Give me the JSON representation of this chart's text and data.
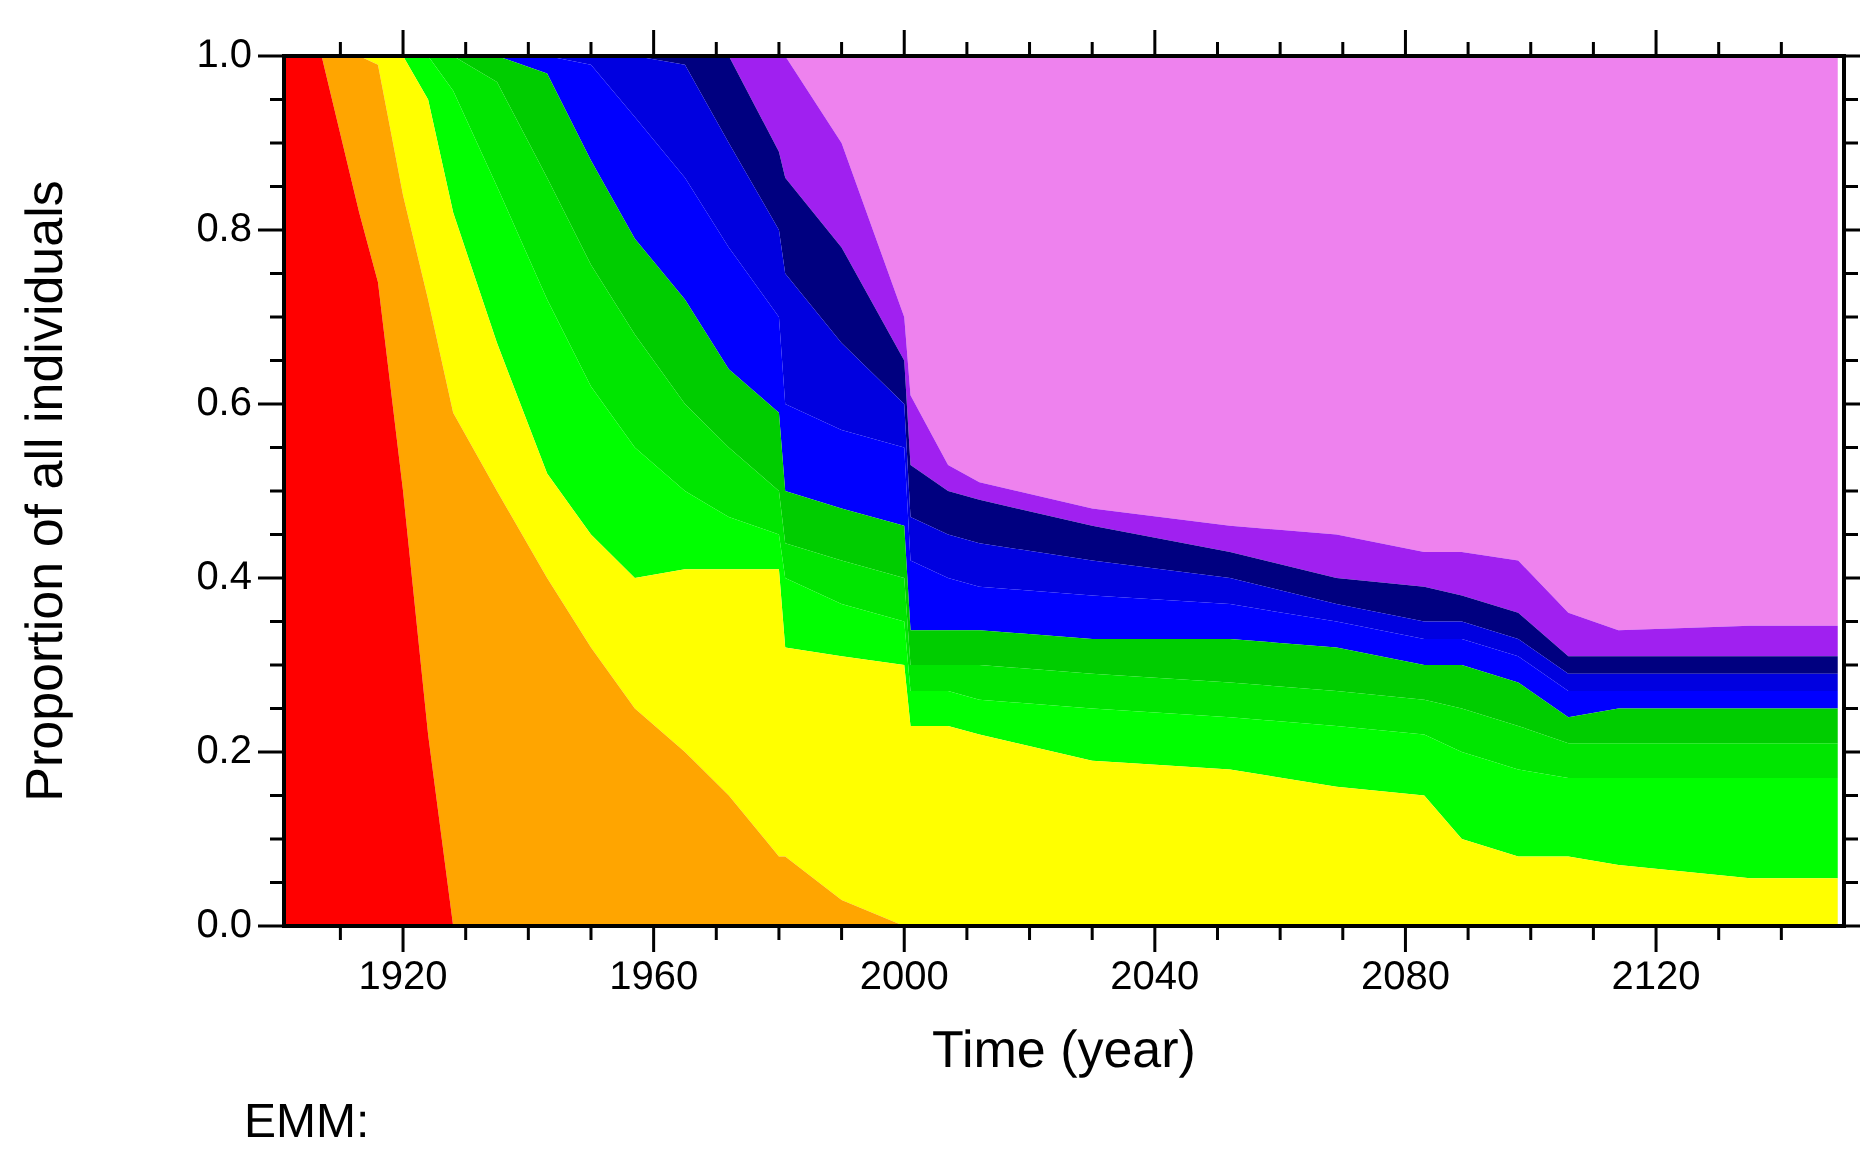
{
  "chart_data": {
    "type": "area",
    "stacked": true,
    "xlabel": "Time (year)",
    "ylabel": "Proportion of all individuals",
    "annotations": [
      "EMM:"
    ],
    "xlim": [
      1901,
      2150
    ],
    "ylim": [
      0,
      1
    ],
    "xticks": [
      {
        "value": 1910,
        "label": null
      },
      1920,
      {
        "value": 1930,
        "label": null
      },
      {
        "value": 1940,
        "label": null
      },
      {
        "value": 1950,
        "label": null
      },
      1960,
      {
        "value": 1970,
        "label": null
      },
      {
        "value": 1980,
        "label": null
      },
      {
        "value": 1990,
        "label": null
      },
      2000,
      {
        "value": 2010,
        "label": null
      },
      {
        "value": 2020,
        "label": null
      },
      {
        "value": 2030,
        "label": null
      },
      2040,
      {
        "value": 2050,
        "label": null
      },
      {
        "value": 2060,
        "label": null
      },
      {
        "value": 2070,
        "label": null
      },
      2080,
      {
        "value": 2090,
        "label": null
      },
      {
        "value": 2100,
        "label": null
      },
      {
        "value": 2110,
        "label": null
      },
      2120,
      {
        "value": 2130,
        "label": null
      },
      {
        "value": 2140,
        "label": null
      }
    ],
    "yticks": [
      {
        "value": 0,
        "label": "0.0"
      },
      {
        "value": 0.05,
        "label": null
      },
      {
        "value": 0.1,
        "label": null
      },
      {
        "value": 0.15,
        "label": null
      },
      {
        "value": 0.2,
        "label": "0.2"
      },
      {
        "value": 0.25,
        "label": null
      },
      {
        "value": 0.3,
        "label": null
      },
      {
        "value": 0.35,
        "label": null
      },
      {
        "value": 0.4,
        "label": "0.4"
      },
      {
        "value": 0.45,
        "label": null
      },
      {
        "value": 0.5,
        "label": null
      },
      {
        "value": 0.55,
        "label": null
      },
      {
        "value": 0.6,
        "label": "0.6"
      },
      {
        "value": 0.65,
        "label": null
      },
      {
        "value": 0.7,
        "label": null
      },
      {
        "value": 0.75,
        "label": null
      },
      {
        "value": 0.8,
        "label": "0.8"
      },
      {
        "value": 0.85,
        "label": null
      },
      {
        "value": 0.9,
        "label": null
      },
      {
        "value": 0.95,
        "label": null
      },
      {
        "value": 1,
        "label": "1.0"
      }
    ],
    "x": [
      1901,
      1907,
      1913,
      1916,
      1920,
      1924,
      1928,
      1935,
      1943,
      1950,
      1957,
      1965,
      1972,
      1980,
      1981,
      1990,
      2000,
      2001,
      2007,
      2012,
      2030,
      2052,
      2069,
      2083,
      2089,
      2098,
      2106,
      2114,
      2135,
      2149
    ],
    "series": [
      {
        "color": "#ff0000",
        "values": [
          1,
          1,
          0.82,
          0.74,
          0.5,
          0.22,
          0,
          null,
          null,
          null,
          null,
          null,
          null,
          null,
          null,
          null,
          null,
          null,
          null,
          null,
          null,
          null,
          null,
          null,
          null,
          null,
          null,
          null,
          null,
          null
        ]
      },
      {
        "color": "#ffa500",
        "values": [
          null,
          0,
          0.18,
          0.25,
          0.34,
          0.5,
          0.59,
          0.5,
          0.4,
          0.32,
          0.25,
          0.2,
          0.15,
          0.08,
          0.08,
          0.03,
          0,
          null,
          null,
          null,
          null,
          null,
          null,
          null,
          null,
          null,
          null,
          null,
          null,
          null
        ]
      },
      {
        "color": "#ffff00",
        "values": [
          null,
          null,
          0,
          0.01,
          0.16,
          0.23,
          0.23,
          0.17,
          0.12,
          0.13,
          0.15,
          0.21,
          0.26,
          0.33,
          0.24,
          0.28,
          0.3,
          0.23,
          0.23,
          0.22,
          0.19,
          0.18,
          0.16,
          0.15,
          0.1,
          0.08,
          0.08,
          0.07,
          0.055,
          0.055
        ]
      },
      {
        "color": "#00ff00",
        "values": [
          null,
          null,
          null,
          null,
          0,
          0.05,
          0.14,
          0.18,
          0.2,
          0.17,
          0.15,
          0.09,
          0.06,
          0.04,
          0.08,
          0.06,
          0.05,
          0.04,
          0.04,
          0.04,
          0.06,
          0.06,
          0.07,
          0.07,
          0.1,
          0.1,
          0.09,
          0.1,
          0.115,
          0.115
        ]
      },
      {
        "color": "#00e600",
        "values": [
          null,
          null,
          null,
          null,
          null,
          0,
          0.04,
          0.12,
          0.14,
          0.14,
          0.13,
          0.1,
          0.08,
          0.05,
          0.04,
          0.05,
          0.05,
          0.03,
          0.03,
          0.04,
          0.04,
          0.04,
          0.04,
          0.04,
          0.05,
          0.05,
          0.04,
          0.04,
          0.04,
          0.04
        ]
      },
      {
        "color": "#00cd00",
        "values": [
          null,
          null,
          null,
          null,
          null,
          null,
          0,
          0.03,
          0.12,
          0.12,
          0.11,
          0.12,
          0.09,
          0.09,
          0.06,
          0.06,
          0.06,
          0.04,
          0.04,
          0.04,
          0.04,
          0.05,
          0.05,
          0.04,
          0.05,
          0.05,
          0.03,
          0.04,
          0.04,
          0.04
        ]
      },
      {
        "color": "#0000ff",
        "values": [
          null,
          null,
          null,
          null,
          null,
          null,
          null,
          0,
          0.02,
          0.11,
          0.14,
          0.14,
          0.14,
          0.11,
          0.1,
          0.09,
          0.09,
          0.08,
          0.06,
          0.05,
          0.05,
          0.04,
          0.03,
          0.03,
          0.03,
          0.03,
          0.03,
          0.02,
          0.02,
          0.02
        ]
      },
      {
        "color": "#0000e0",
        "values": [
          null,
          null,
          null,
          null,
          null,
          null,
          null,
          null,
          0,
          0.01,
          0.07,
          0.13,
          0.12,
          0.1,
          0.15,
          0.1,
          0.05,
          0.05,
          0.05,
          0.05,
          0.04,
          0.03,
          0.02,
          0.02,
          0.02,
          0.02,
          0.02,
          0.02,
          0.02,
          0.02
        ]
      },
      {
        "color": "#000080",
        "values": [
          null,
          null,
          null,
          null,
          null,
          null,
          null,
          null,
          null,
          null,
          0,
          0.01,
          0.1,
          0.09,
          0.11,
          0.11,
          0.05,
          0.06,
          0.05,
          0.05,
          0.04,
          0.03,
          0.03,
          0.04,
          0.03,
          0.03,
          0.02,
          0.02,
          0.02,
          0.02
        ]
      },
      {
        "color": "#a020f0",
        "values": [
          null,
          null,
          null,
          null,
          null,
          null,
          null,
          null,
          null,
          null,
          null,
          null,
          0,
          0.11,
          0.14,
          0.12,
          0.05,
          0.08,
          0.03,
          0.02,
          0.02,
          0.03,
          0.05,
          0.04,
          0.05,
          0.06,
          0.05,
          0.03,
          0.035,
          0.035
        ]
      },
      {
        "color": "#ee82ee",
        "values": [
          null,
          null,
          null,
          null,
          null,
          null,
          null,
          null,
          null,
          null,
          null,
          null,
          null,
          null,
          0,
          0.1,
          0.3,
          0.39,
          0.47,
          0.49,
          0.52,
          0.54,
          0.55,
          0.57,
          0.57,
          0.58,
          0.64,
          0.66,
          0.655,
          0.655
        ]
      }
    ]
  }
}
